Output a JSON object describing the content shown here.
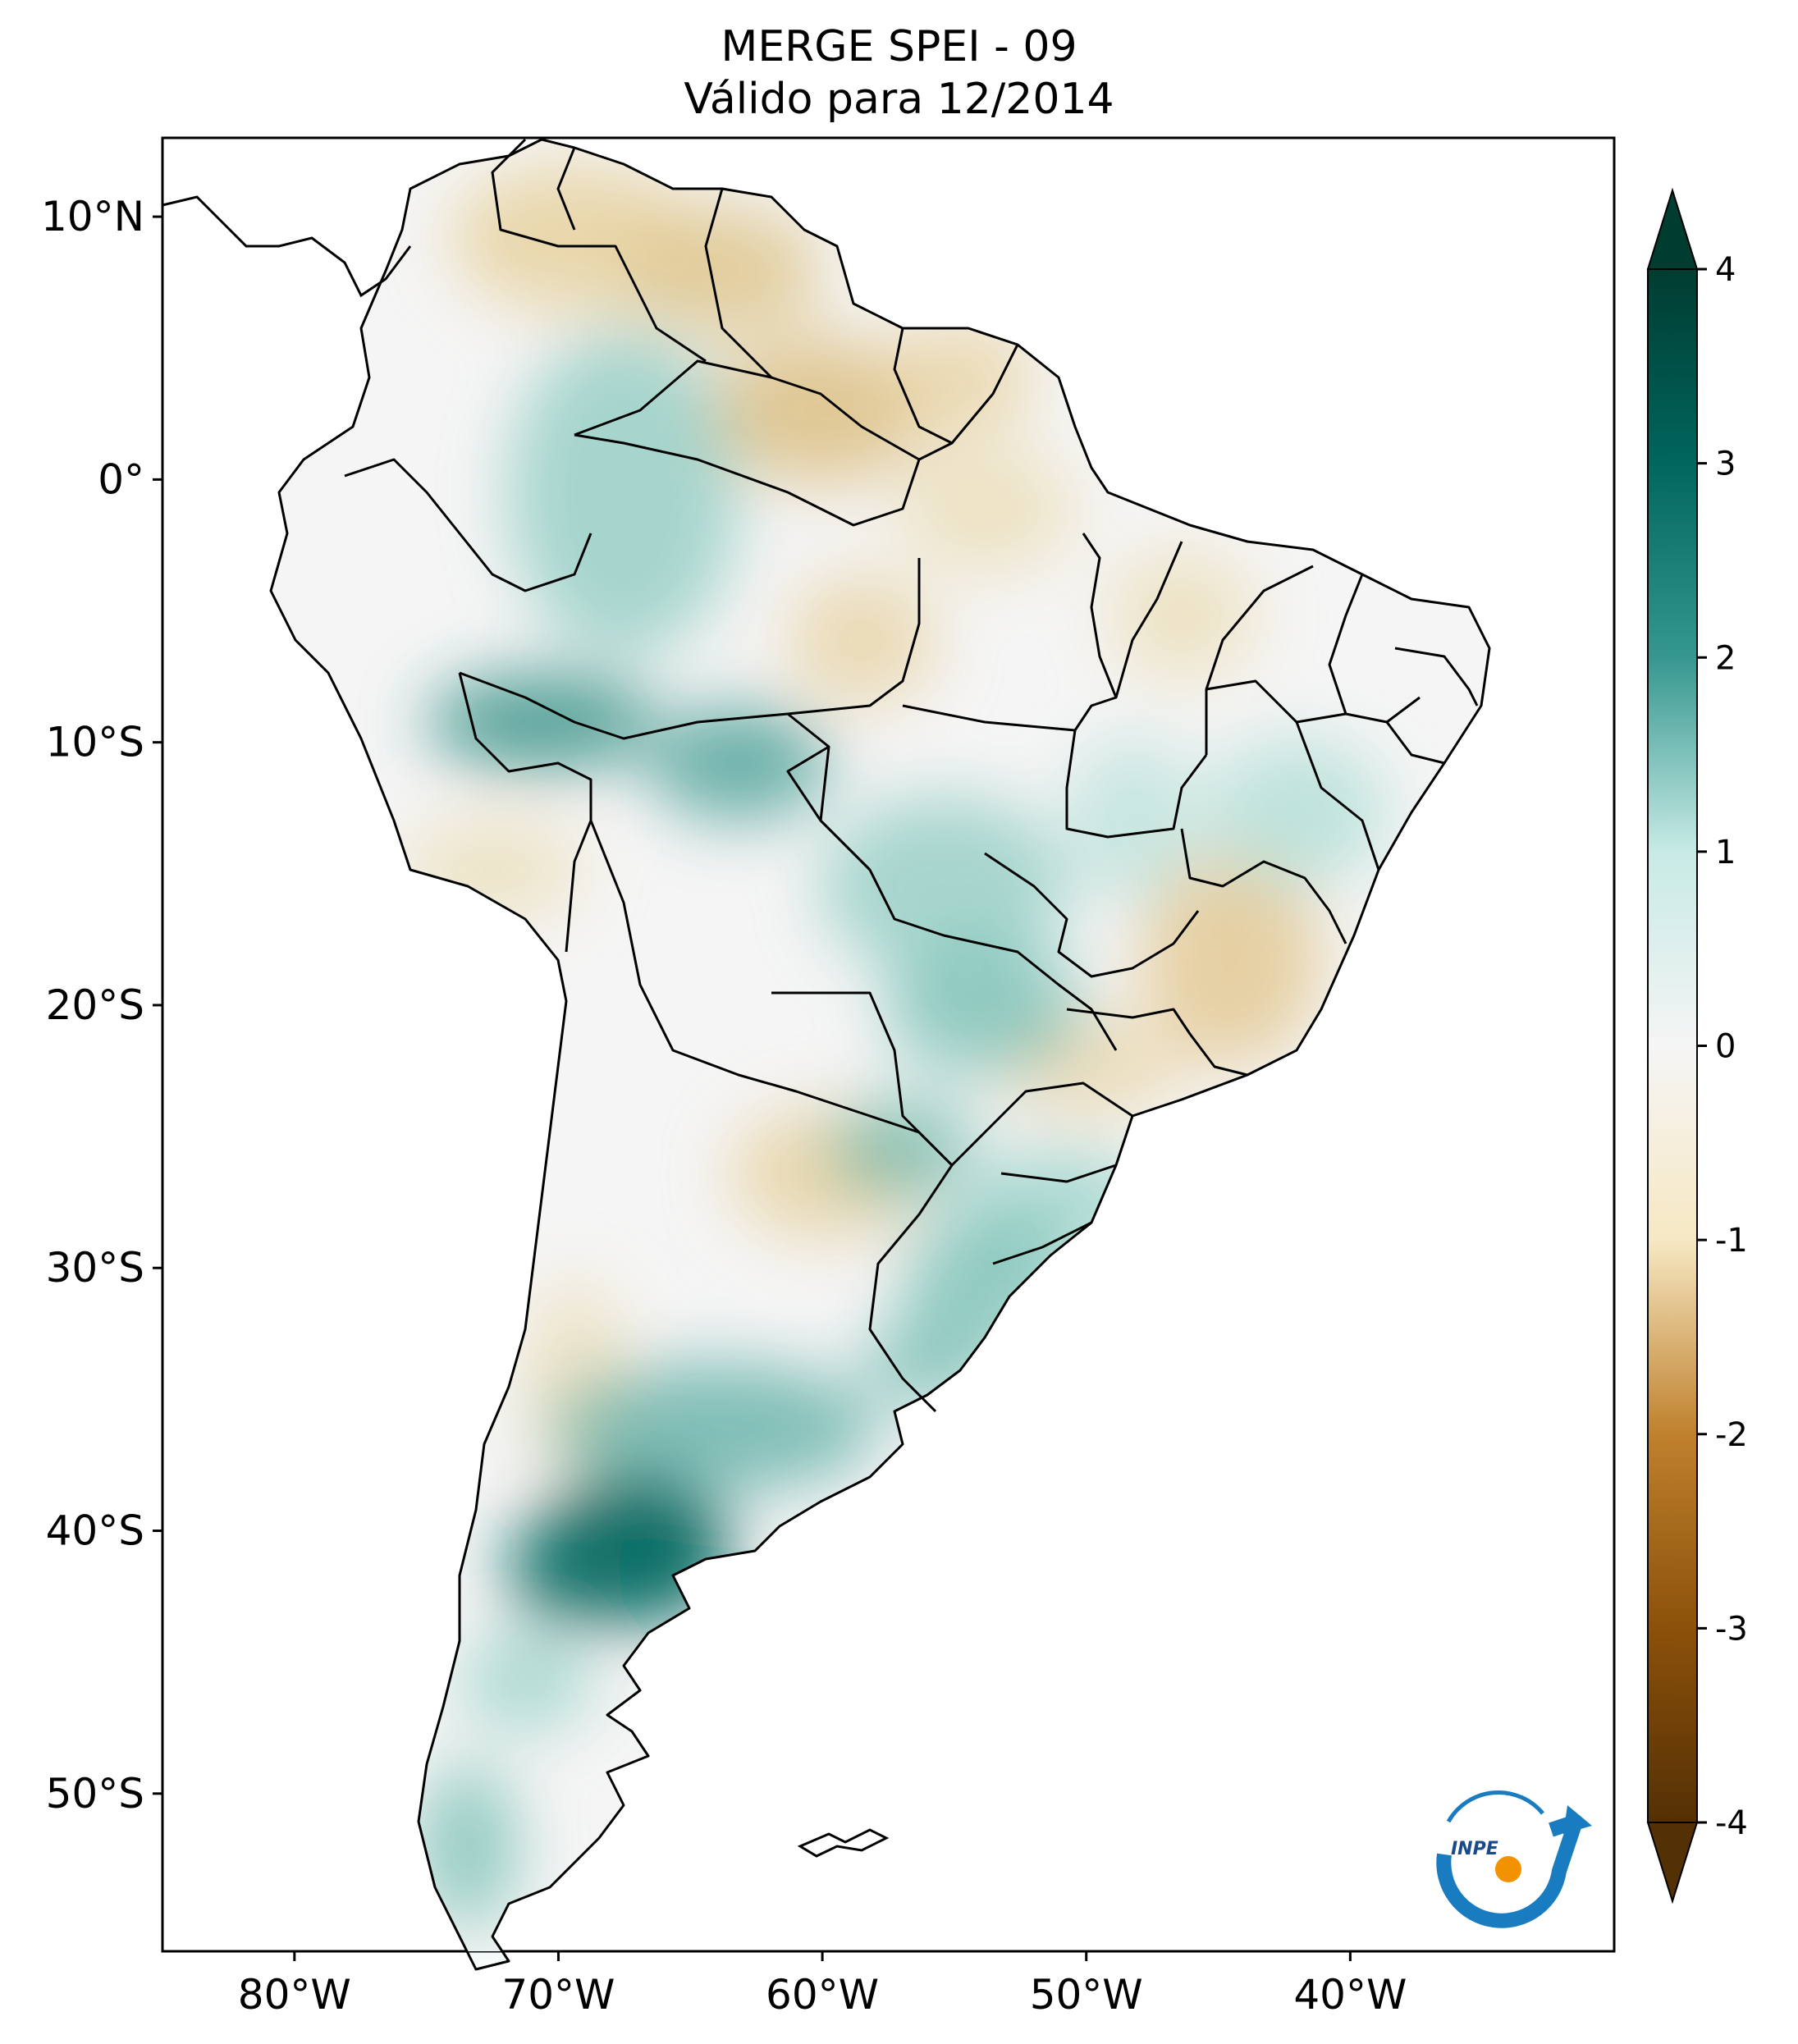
{
  "title": {
    "line1": "MERGE   SPEI - 09",
    "line2": "Válido para 12/2014"
  },
  "map": {
    "region": "South America",
    "projection": "PlateCarree",
    "lon_range": [
      -85,
      -30
    ],
    "lat_range": [
      -56,
      13
    ],
    "lat_ticks": [
      {
        "value": 10,
        "label": "10°N"
      },
      {
        "value": 0,
        "label": "0°"
      },
      {
        "value": -10,
        "label": "10°S"
      },
      {
        "value": -20,
        "label": "20°S"
      },
      {
        "value": -30,
        "label": "30°S"
      },
      {
        "value": -40,
        "label": "40°S"
      },
      {
        "value": -50,
        "label": "50°S"
      }
    ],
    "lon_ticks": [
      {
        "value": -80,
        "label": "80°W"
      },
      {
        "value": -70,
        "label": "70°W"
      },
      {
        "value": -60,
        "label": "60°W"
      },
      {
        "value": -50,
        "label": "50°W"
      },
      {
        "value": -40,
        "label": "40°W"
      }
    ]
  },
  "colorbar": {
    "min": -4,
    "max": 4,
    "extend": "both",
    "ticks": [
      {
        "value": 4,
        "label": "4"
      },
      {
        "value": 3,
        "label": "3"
      },
      {
        "value": 2,
        "label": "2"
      },
      {
        "value": 1,
        "label": "1"
      },
      {
        "value": 0,
        "label": "0"
      },
      {
        "value": -1,
        "label": "-1"
      },
      {
        "value": -2,
        "label": "-2"
      },
      {
        "value": -3,
        "label": "-3"
      },
      {
        "value": -4,
        "label": "-4"
      }
    ],
    "colors": {
      "pos_4": "#003c30",
      "pos_3": "#01665e",
      "pos_2": "#35978f",
      "pos_1": "#c7eae5",
      "zero": "#f5f5f5",
      "neg_1": "#f6e8c3",
      "neg_2": "#dfc27d",
      "neg_3": "#bf812d",
      "neg_4": "#543005"
    }
  },
  "logo": {
    "text": "INPE"
  }
}
